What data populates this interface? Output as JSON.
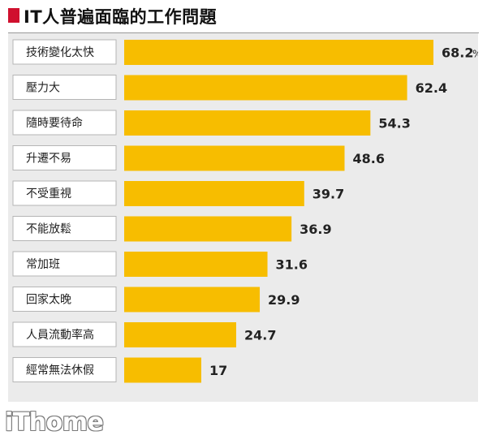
{
  "title": "IT人普遍面臨的工作問題",
  "watermark": "iThome",
  "colors": {
    "bar": "#f7bd00",
    "title_marker": "#d0102e",
    "panel_bg": "#ebebeb",
    "label_box_bg": "#ffffff"
  },
  "chart_data": {
    "type": "bar",
    "orientation": "horizontal",
    "title": "IT人普遍面臨的工作問題",
    "unit": "%",
    "categories": [
      "技術變化太快",
      "壓力大",
      "隨時要待命",
      "升遷不易",
      "不受重視",
      "不能放鬆",
      "常加班",
      "回家太晚",
      "人員流動率高",
      "經常無法休假"
    ],
    "values": [
      68.2,
      62.4,
      54.3,
      48.6,
      39.7,
      36.9,
      31.6,
      29.9,
      24.7,
      17
    ],
    "value_labels": [
      "68.2",
      "62.4",
      "54.3",
      "48.6",
      "39.7",
      "36.9",
      "31.6",
      "29.9",
      "24.7",
      "17"
    ],
    "grid": false,
    "legend": "none"
  }
}
